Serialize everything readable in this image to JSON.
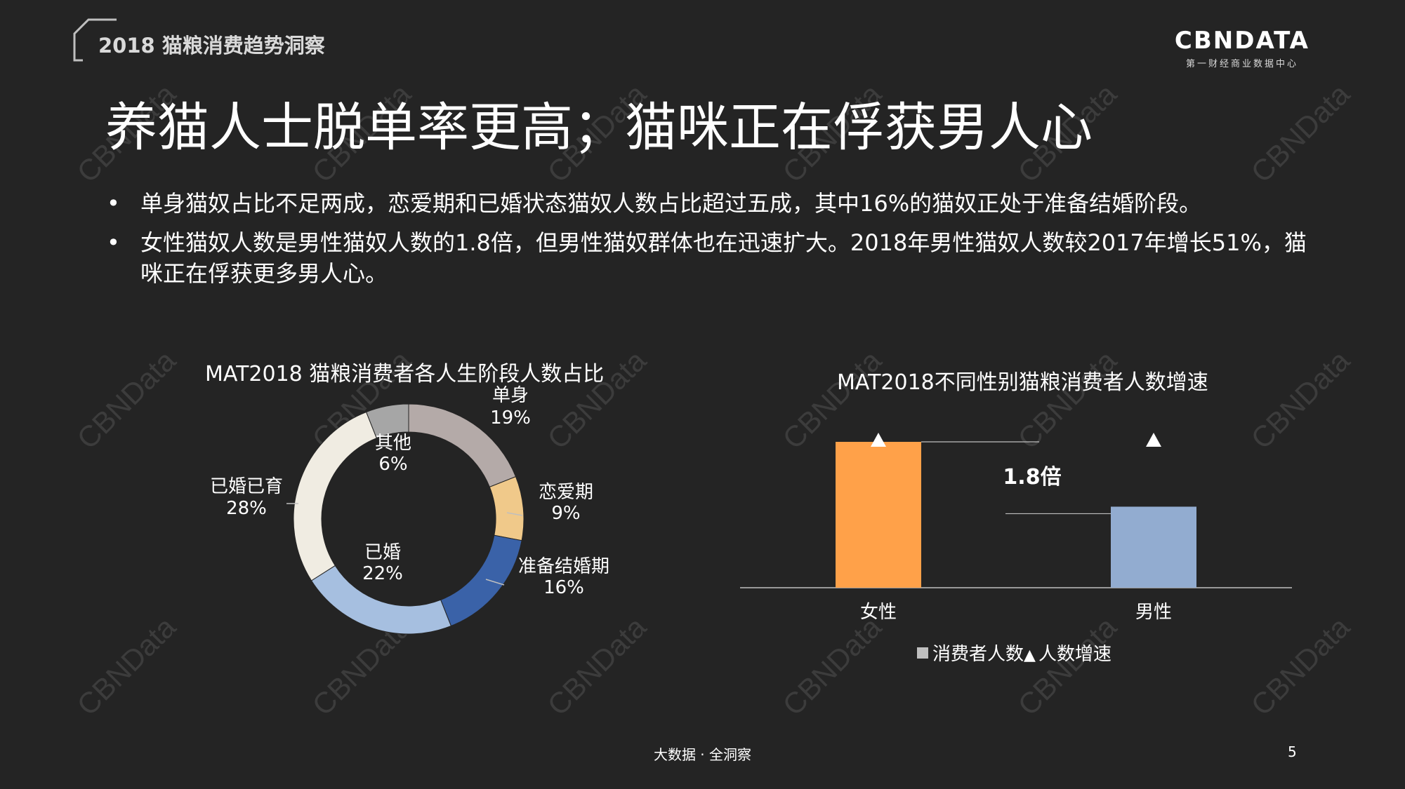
{
  "header": {
    "deck_title": "2018 猫粮消费趋势洞察"
  },
  "logo": {
    "main": "CBNDATA",
    "sub": "第一财经商业数据中心"
  },
  "watermark": "CBNData",
  "title": "养猫人士脱单率更高；猫咪正在俘获男人心",
  "bullets": [
    "单身猫奴占比不足两成，恋爱期和已婚状态猫奴人数占比超过五成，其中16%的猫奴正处于准备结婚阶段。",
    "女性猫奴人数是男性猫奴人数的1.8倍，但男性猫奴群体也在迅速扩大。2018年男性猫奴人数较2017年增长51%，猫咪正在俘获更多男人心。"
  ],
  "chart_data": [
    {
      "type": "pie",
      "title": "MAT2018 猫粮消费者各人生阶段人数占比",
      "slices": [
        {
          "label": "单身",
          "value": 19,
          "display": "19%",
          "color": "#b4aaa8"
        },
        {
          "label": "恋爱期",
          "value": 9,
          "display": "9%",
          "color": "#f0c98a"
        },
        {
          "label": "准备结婚期",
          "value": 16,
          "display": "16%",
          "color": "#3a62a8"
        },
        {
          "label": "已婚",
          "value": 22,
          "display": "22%",
          "color": "#a6bfe0"
        },
        {
          "label": "已婚已育",
          "value": 28,
          "display": "28%",
          "color": "#f0ece2"
        },
        {
          "label": "其他",
          "value": 6,
          "display": "6%",
          "color": "#a6a6a6"
        }
      ]
    },
    {
      "type": "bar",
      "title": "MAT2018不同性别猫粮消费者人数增速",
      "categories": [
        "女性",
        "男性"
      ],
      "series": [
        {
          "name": "消费者人数",
          "values": [
            1.8,
            1.0
          ],
          "colors": [
            "#ffa149",
            "#92acd0"
          ]
        },
        {
          "name": "人数增速",
          "marker": "triangle"
        }
      ],
      "annotation": "1.8倍",
      "legend": {
        "square_label": "消费者人数",
        "triangle_label": "人数增速"
      }
    }
  ],
  "footer": {
    "text": "大数据 · 全洞察",
    "page": "5"
  }
}
